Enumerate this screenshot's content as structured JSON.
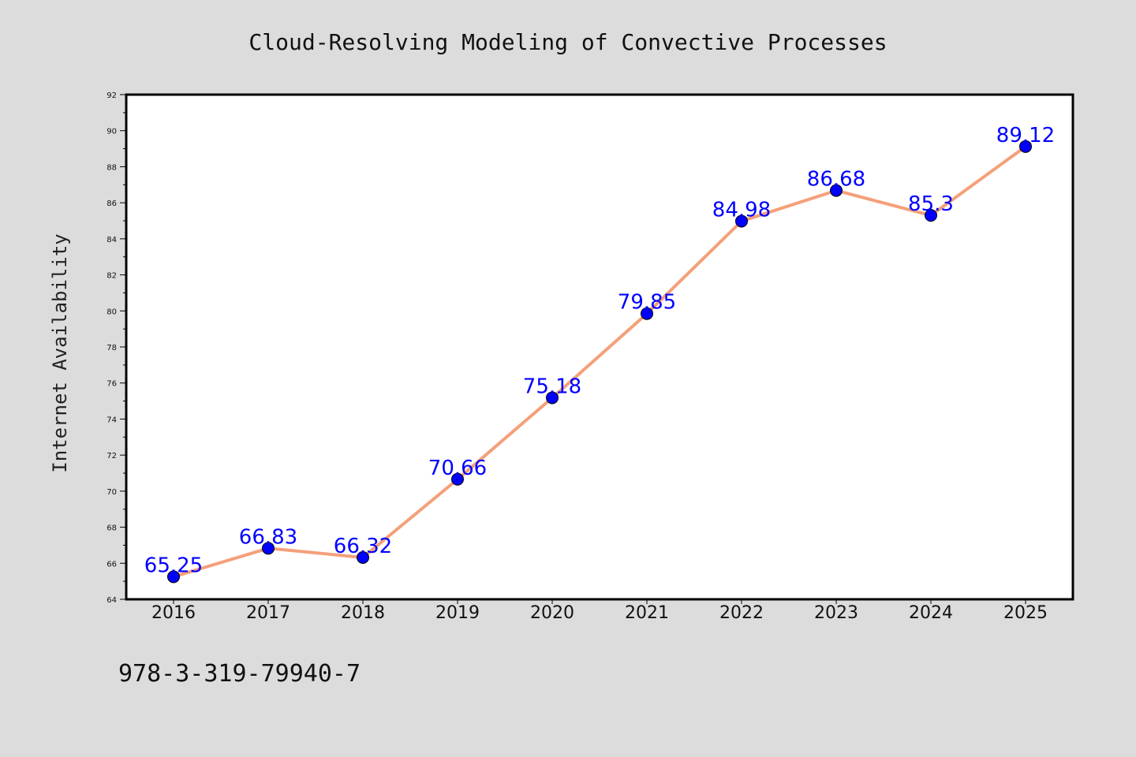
{
  "chart_data": {
    "type": "line",
    "title": "Cloud-Resolving Modeling of Convective Processes",
    "xlabel": "",
    "ylabel": "Internet Availability",
    "categories": [
      "2016",
      "2017",
      "2018",
      "2019",
      "2020",
      "2021",
      "2022",
      "2023",
      "2024",
      "2025"
    ],
    "series": [
      {
        "values": [
          65.25,
          66.83,
          66.32,
          70.66,
          75.18,
          79.85,
          84.98,
          86.68,
          85.3,
          89.12
        ],
        "data_labels": [
          "65.25",
          "66.83",
          "66.32",
          "70.66",
          "75.18",
          "79.85",
          "84.98",
          "86.68",
          "85.3",
          "89.12"
        ],
        "line_color": "#f4a07a",
        "marker_color": "#0000ff"
      }
    ],
    "ylim": [
      64,
      92
    ],
    "yticks": [
      "64",
      "66",
      "68",
      "70",
      "72",
      "74",
      "76",
      "78",
      "80",
      "82",
      "84",
      "86",
      "88",
      "90",
      "92"
    ],
    "grid": false,
    "legend": "none"
  },
  "footer_text": "978-3-319-79940-7",
  "colors": {
    "background": "#dcdcdc",
    "plot_background": "#ffffff",
    "label_color": "#0000ff"
  }
}
